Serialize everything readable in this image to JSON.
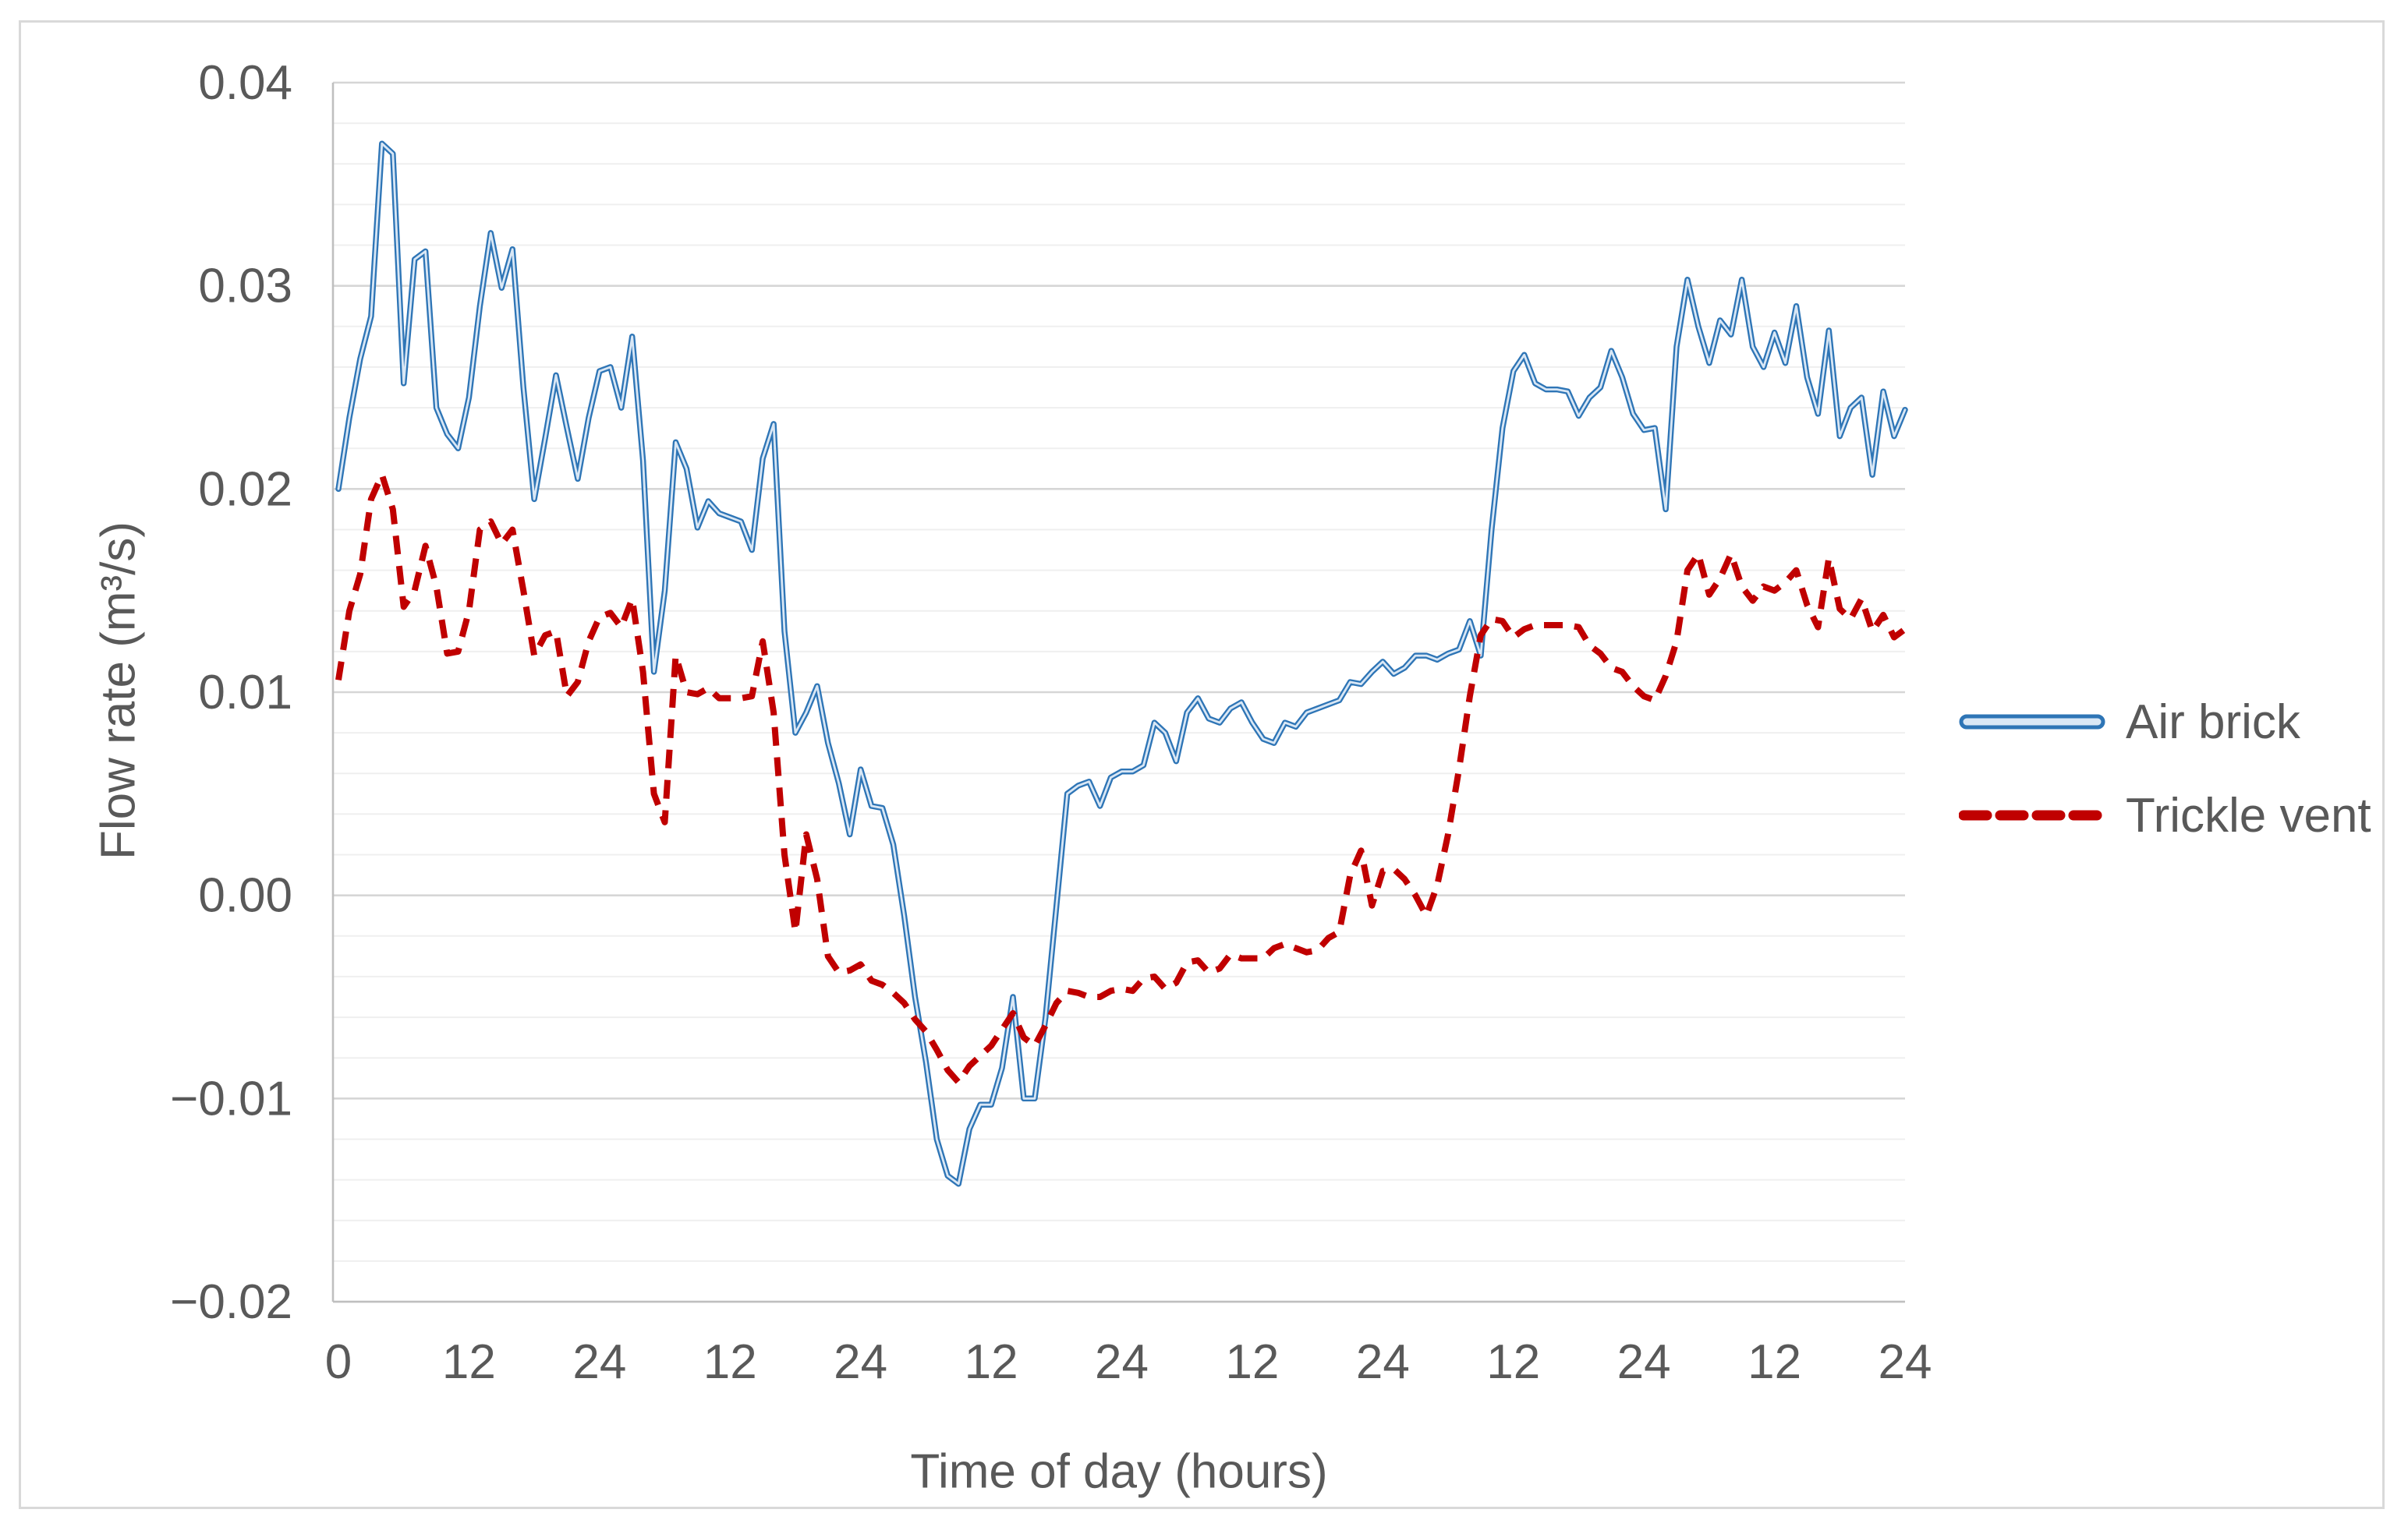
{
  "chart_data": {
    "type": "line",
    "title": "",
    "xlabel": "Time of day (hours)",
    "ylabel": "Flow rate (m³/s)",
    "ylim": [
      -0.02,
      0.04
    ],
    "major_grid_step": 0.01,
    "minor_grid_step": 0.002,
    "grid": true,
    "legend_position": "right",
    "ytick_labels": [
      "0.04",
      "0.03",
      "0.02",
      "0.01",
      "0.00",
      "−0.01",
      "−0.02"
    ],
    "yticks": [
      0.04,
      0.03,
      0.02,
      0.01,
      0.0,
      -0.01,
      -0.02
    ],
    "xtick_labels": [
      "0",
      "12",
      "24",
      "12",
      "24",
      "12",
      "24",
      "12",
      "24",
      "12",
      "24",
      "12",
      "24"
    ],
    "xtick_hours": [
      0,
      12,
      24,
      36,
      48,
      60,
      72,
      84,
      96,
      108,
      120,
      132,
      144
    ],
    "x_hours_range": [
      0,
      144
    ],
    "series": [
      {
        "name": "Air brick",
        "style": "solid-outlined",
        "color": "#2E75B6",
        "core_color": "#D9E7F5",
        "values": [
          0.02,
          0.0235,
          0.0264,
          0.0285,
          0.037,
          0.0365,
          0.0252,
          0.0313,
          0.0317,
          0.024,
          0.0227,
          0.022,
          0.0245,
          0.029,
          0.0326,
          0.0299,
          0.0318,
          0.025,
          0.0195,
          0.0225,
          0.0256,
          0.023,
          0.0205,
          0.0235,
          0.0258,
          0.026,
          0.024,
          0.0275,
          0.0214,
          0.011,
          0.015,
          0.0223,
          0.021,
          0.0181,
          0.0194,
          0.0188,
          0.0186,
          0.0184,
          0.017,
          0.0215,
          0.0232,
          0.013,
          0.008,
          0.009,
          0.0103,
          0.0075,
          0.0055,
          0.003,
          0.0062,
          0.0044,
          0.0043,
          0.0025,
          -0.001,
          -0.005,
          -0.0082,
          -0.012,
          -0.0138,
          -0.0142,
          -0.0115,
          -0.0103,
          -0.0103,
          -0.0085,
          -0.005,
          -0.01,
          -0.01,
          -0.006,
          -0.0005,
          0.005,
          0.0054,
          0.0056,
          0.0044,
          0.0058,
          0.0061,
          0.0061,
          0.0064,
          0.0085,
          0.008,
          0.0066,
          0.009,
          0.0097,
          0.0087,
          0.0085,
          0.0092,
          0.0095,
          0.0085,
          0.0077,
          0.0075,
          0.0085,
          0.0083,
          0.009,
          0.0092,
          0.0094,
          0.0096,
          0.0105,
          0.0104,
          0.011,
          0.0115,
          0.0109,
          0.0112,
          0.0118,
          0.0118,
          0.0116,
          0.0119,
          0.0121,
          0.0135,
          0.0118,
          0.018,
          0.023,
          0.0258,
          0.0266,
          0.0252,
          0.0249,
          0.0249,
          0.0248,
          0.0236,
          0.0245,
          0.025,
          0.0268,
          0.0255,
          0.0237,
          0.0229,
          0.023,
          0.019,
          0.027,
          0.0303,
          0.028,
          0.0262,
          0.0283,
          0.0276,
          0.0303,
          0.027,
          0.026,
          0.0277,
          0.0262,
          0.029,
          0.0255,
          0.0237,
          0.0278,
          0.0226,
          0.024,
          0.0245,
          0.0207,
          0.0248,
          0.0226,
          0.0239
        ]
      },
      {
        "name": "Trickle vent",
        "style": "dashed",
        "color": "#C00000",
        "values": [
          0.0106,
          0.014,
          0.0158,
          0.0195,
          0.0207,
          0.019,
          0.0142,
          0.015,
          0.0172,
          0.0152,
          0.0119,
          0.012,
          0.014,
          0.018,
          0.0184,
          0.0173,
          0.018,
          0.015,
          0.0118,
          0.0128,
          0.013,
          0.0098,
          0.0105,
          0.0125,
          0.0137,
          0.0139,
          0.0132,
          0.0146,
          0.011,
          0.005,
          0.0036,
          0.0118,
          0.01,
          0.0099,
          0.0102,
          0.0097,
          0.0097,
          0.0097,
          0.0098,
          0.0125,
          0.009,
          0.002,
          -0.0018,
          0.003,
          0.0008,
          -0.003,
          -0.0038,
          -0.0037,
          -0.0034,
          -0.0042,
          -0.0044,
          -0.0048,
          -0.0053,
          -0.0061,
          -0.0067,
          -0.0076,
          -0.0086,
          -0.0092,
          -0.0084,
          -0.0079,
          -0.0074,
          -0.0066,
          -0.0058,
          -0.007,
          -0.0074,
          -0.0064,
          -0.0053,
          -0.0047,
          -0.0048,
          -0.005,
          -0.005,
          -0.0047,
          -0.0046,
          -0.0047,
          -0.0041,
          -0.004,
          -0.0046,
          -0.0043,
          -0.0033,
          -0.0032,
          -0.0038,
          -0.0036,
          -0.0029,
          -0.0031,
          -0.0031,
          -0.0031,
          -0.0026,
          -0.0024,
          -0.0026,
          -0.0028,
          -0.0027,
          -0.0021,
          -0.0018,
          0.001,
          0.0022,
          -0.0005,
          0.0012,
          0.0013,
          0.0008,
          0.0,
          -0.001,
          0.0005,
          0.003,
          0.0062,
          0.0098,
          0.0128,
          0.0136,
          0.0135,
          0.0127,
          0.0131,
          0.0133,
          0.0133,
          0.0133,
          0.0133,
          0.0132,
          0.0123,
          0.0119,
          0.0112,
          0.011,
          0.0103,
          0.0098,
          0.0096,
          0.0108,
          0.0125,
          0.016,
          0.0168,
          0.0148,
          0.0156,
          0.0168,
          0.0152,
          0.0145,
          0.0152,
          0.015,
          0.0154,
          0.016,
          0.0143,
          0.0132,
          0.0166,
          0.0141,
          0.0136,
          0.0146,
          0.013,
          0.0138,
          0.0127,
          0.0131
        ]
      }
    ]
  },
  "legend": {
    "air_brick_label": "Air brick",
    "trickle_vent_label": "Trickle vent"
  },
  "colors": {
    "chart_border": "#D9D9D9",
    "major_gridline": "#D6D6D6",
    "minor_gridline": "#EFEFEF",
    "axis_line": "#BFBFBF",
    "tick_label": "#595959",
    "axis_title": "#595959",
    "air_brick_line": "#2E75B6",
    "air_brick_core": "#D9E7F5",
    "trickle_vent_line": "#C00000"
  }
}
